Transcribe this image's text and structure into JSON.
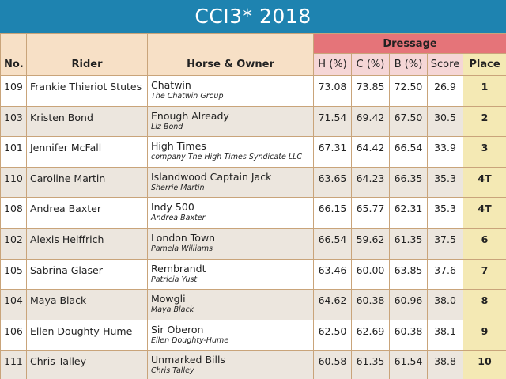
{
  "title": "CCI3* 2018",
  "headers": {
    "dressage": "Dressage",
    "no": "No.",
    "rider": "Rider",
    "horse_owner": "Horse & Owner",
    "h": "H (%)",
    "c": "C (%)",
    "b": "B (%)",
    "score": "Score",
    "place": "Place"
  },
  "rows": [
    {
      "no": "109",
      "rider": "Frankie Thieriot Stutes",
      "horse": "Chatwin",
      "owner": "The Chatwin Group",
      "h": "73.08",
      "c": "73.85",
      "b": "72.50",
      "score": "26.9",
      "place": "1"
    },
    {
      "no": "103",
      "rider": "Kristen Bond",
      "horse": "Enough Already",
      "owner": "Liz Bond",
      "h": "71.54",
      "c": "69.42",
      "b": "67.50",
      "score": "30.5",
      "place": "2"
    },
    {
      "no": "101",
      "rider": "Jennifer McFall",
      "horse": "High Times",
      "owner": "company The High Times Syndicate LLC",
      "h": "67.31",
      "c": "64.42",
      "b": "66.54",
      "score": "33.9",
      "place": "3"
    },
    {
      "no": "110",
      "rider": "Caroline Martin",
      "horse": "Islandwood Captain Jack",
      "owner": "Sherrie Martin",
      "h": "63.65",
      "c": "64.23",
      "b": "66.35",
      "score": "35.3",
      "place": "4T"
    },
    {
      "no": "108",
      "rider": "Andrea Baxter",
      "horse": "Indy 500",
      "owner": "Andrea Baxter",
      "h": "66.15",
      "c": "65.77",
      "b": "62.31",
      "score": "35.3",
      "place": "4T"
    },
    {
      "no": "102",
      "rider": "Alexis Helffrich",
      "horse": "London Town",
      "owner": "Pamela Williams",
      "h": "66.54",
      "c": "59.62",
      "b": "61.35",
      "score": "37.5",
      "place": "6"
    },
    {
      "no": "105",
      "rider": "Sabrina Glaser",
      "horse": "Rembrandt",
      "owner": "Patricia Yust",
      "h": "63.46",
      "c": "60.00",
      "b": "63.85",
      "score": "37.6",
      "place": "7"
    },
    {
      "no": "104",
      "rider": "Maya Black",
      "horse": "Mowgli",
      "owner": "Maya Black",
      "h": "64.62",
      "c": "60.38",
      "b": "60.96",
      "score": "38.0",
      "place": "8"
    },
    {
      "no": "106",
      "rider": "Ellen Doughty-Hume",
      "horse": "Sir Oberon",
      "owner": "Ellen Doughty-Hume",
      "h": "62.50",
      "c": "62.69",
      "b": "60.38",
      "score": "38.1",
      "place": "9"
    },
    {
      "no": "111",
      "rider": "Chris Talley",
      "horse": "Unmarked Bills",
      "owner": "Chris Talley",
      "h": "60.58",
      "c": "61.35",
      "b": "61.54",
      "score": "38.8",
      "place": "10"
    }
  ]
}
